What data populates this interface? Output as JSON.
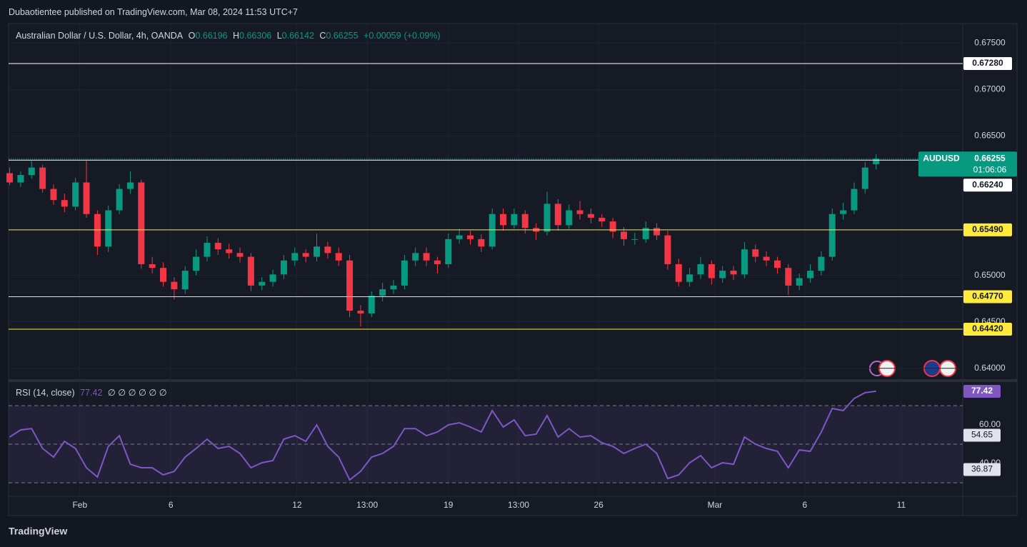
{
  "header": {
    "publisher": "Dubaotientee published on TradingView.com, Mar 08, 2024 11:53 UTC+7"
  },
  "footer": {
    "brand": "TradingView"
  },
  "chart_data": [
    {
      "type": "candlestick",
      "title": "Australian Dollar / U.S. Dollar, 4h, OANDA",
      "ohlc_labels": [
        "O",
        "H",
        "L",
        "C"
      ],
      "change": "+0.00059",
      "change_pct": "(+0.09%)",
      "symbol": "AUDUSD",
      "countdown": "01:06:06",
      "up_color": "#089981",
      "down_color": "#f23645",
      "grid": true,
      "ylim": [
        0.6389,
        0.6771
      ],
      "yticks": [
        {
          "value": 0.675,
          "label": "0.67500"
        },
        {
          "value": 0.67,
          "label": "0.67000"
        },
        {
          "value": 0.665,
          "label": "0.66500"
        },
        {
          "value": 0.65,
          "label": "0.65000"
        },
        {
          "value": 0.645,
          "label": "0.64500"
        },
        {
          "value": 0.64,
          "label": "0.64000"
        }
      ],
      "xlim": [
        -0.1,
        86.9
      ],
      "xticks": [
        {
          "value": 6.4,
          "label": "Feb"
        },
        {
          "value": 14.7,
          "label": "6"
        },
        {
          "value": 26.2,
          "label": "12"
        },
        {
          "value": 32.6,
          "label": "13:00"
        },
        {
          "value": 40,
          "label": "19"
        },
        {
          "value": 46.4,
          "label": "13:00"
        },
        {
          "value": 53.7,
          "label": "26"
        },
        {
          "value": 64.3,
          "label": "Mar"
        },
        {
          "value": 72.5,
          "label": "6"
        },
        {
          "value": 81.3,
          "label": "11"
        }
      ],
      "levels": [
        {
          "value": 0.6728,
          "label": "0.67280",
          "color": "#ffffff"
        },
        {
          "value": 0.6624,
          "label": "0.66240",
          "color": "#ffffff"
        },
        {
          "value": 0.6549,
          "label": "0.65490",
          "color": "#ffeb3b"
        },
        {
          "value": 0.6477,
          "label": "0.64770",
          "color": "#ffeb3b"
        },
        {
          "value": 0.6442,
          "label": "0.64420",
          "color": "#ffeb3b"
        }
      ],
      "candles": [
        [
          0.661,
          0.6616,
          0.6597,
          0.66
        ],
        [
          0.66,
          0.6612,
          0.6595,
          0.6608
        ],
        [
          0.6608,
          0.6623,
          0.6604,
          0.6616
        ],
        [
          0.6616,
          0.6619,
          0.6589,
          0.6593
        ],
        [
          0.6593,
          0.6598,
          0.6576,
          0.6581
        ],
        [
          0.6581,
          0.6588,
          0.6568,
          0.6574
        ],
        [
          0.6574,
          0.6605,
          0.657,
          0.66
        ],
        [
          0.66,
          0.6623,
          0.6562,
          0.6566
        ],
        [
          0.6566,
          0.657,
          0.6522,
          0.6531
        ],
        [
          0.6531,
          0.6575,
          0.6525,
          0.657
        ],
        [
          0.657,
          0.6598,
          0.6566,
          0.6593
        ],
        [
          0.6593,
          0.6612,
          0.6588,
          0.66
        ],
        [
          0.66,
          0.6603,
          0.6507,
          0.6512
        ],
        [
          0.6512,
          0.652,
          0.6502,
          0.6508
        ],
        [
          0.6508,
          0.6514,
          0.6488,
          0.6493
        ],
        [
          0.6493,
          0.6498,
          0.6474,
          0.6485
        ],
        [
          0.6485,
          0.651,
          0.648,
          0.6505
        ],
        [
          0.6505,
          0.6528,
          0.65,
          0.652
        ],
        [
          0.652,
          0.6542,
          0.6515,
          0.6535
        ],
        [
          0.6535,
          0.654,
          0.6522,
          0.6528
        ],
        [
          0.6528,
          0.6534,
          0.6518,
          0.6524
        ],
        [
          0.6524,
          0.653,
          0.6514,
          0.652
        ],
        [
          0.652,
          0.6524,
          0.6483,
          0.6489
        ],
        [
          0.6489,
          0.6498,
          0.6484,
          0.6493
        ],
        [
          0.6493,
          0.6506,
          0.6488,
          0.6501
        ],
        [
          0.6501,
          0.6522,
          0.6496,
          0.6516
        ],
        [
          0.6516,
          0.653,
          0.651,
          0.6524
        ],
        [
          0.6524,
          0.6528,
          0.6514,
          0.652
        ],
        [
          0.652,
          0.6545,
          0.6515,
          0.6531
        ],
        [
          0.6531,
          0.6536,
          0.6518,
          0.6524
        ],
        [
          0.6524,
          0.653,
          0.651,
          0.6516
        ],
        [
          0.6516,
          0.6522,
          0.6455,
          0.6462
        ],
        [
          0.6462,
          0.6468,
          0.6445,
          0.6459
        ],
        [
          0.6459,
          0.6483,
          0.6455,
          0.6478
        ],
        [
          0.6478,
          0.6492,
          0.6472,
          0.6485
        ],
        [
          0.6485,
          0.6495,
          0.648,
          0.6489
        ],
        [
          0.6489,
          0.6522,
          0.6485,
          0.6516
        ],
        [
          0.6516,
          0.653,
          0.651,
          0.6524
        ],
        [
          0.6524,
          0.653,
          0.651,
          0.6516
        ],
        [
          0.6516,
          0.652,
          0.6502,
          0.6512
        ],
        [
          0.6512,
          0.6545,
          0.6508,
          0.6539
        ],
        [
          0.6539,
          0.655,
          0.6534,
          0.6543
        ],
        [
          0.6543,
          0.6548,
          0.6533,
          0.6539
        ],
        [
          0.6539,
          0.6544,
          0.6525,
          0.6531
        ],
        [
          0.6531,
          0.6572,
          0.6528,
          0.6566
        ],
        [
          0.6566,
          0.6572,
          0.6548,
          0.6554
        ],
        [
          0.6554,
          0.6572,
          0.655,
          0.6566
        ],
        [
          0.6566,
          0.657,
          0.6545,
          0.6551
        ],
        [
          0.6551,
          0.6556,
          0.6538,
          0.6547
        ],
        [
          0.6547,
          0.659,
          0.6543,
          0.6577
        ],
        [
          0.6577,
          0.6582,
          0.6548,
          0.6554
        ],
        [
          0.6554,
          0.6576,
          0.655,
          0.657
        ],
        [
          0.657,
          0.658,
          0.656,
          0.6566
        ],
        [
          0.6566,
          0.6572,
          0.6556,
          0.6562
        ],
        [
          0.6562,
          0.6566,
          0.6552,
          0.6558
        ],
        [
          0.6558,
          0.6562,
          0.654,
          0.6547
        ],
        [
          0.6547,
          0.6552,
          0.6532,
          0.6539
        ],
        [
          0.6539,
          0.6546,
          0.6533,
          0.6539
        ],
        [
          0.6539,
          0.6558,
          0.6535,
          0.6551
        ],
        [
          0.6551,
          0.6556,
          0.6538,
          0.6543
        ],
        [
          0.6543,
          0.6548,
          0.6506,
          0.6512
        ],
        [
          0.6512,
          0.6518,
          0.6488,
          0.6493
        ],
        [
          0.6493,
          0.6508,
          0.6488,
          0.6501
        ],
        [
          0.6501,
          0.652,
          0.6496,
          0.6512
        ],
        [
          0.6512,
          0.6516,
          0.649,
          0.6497
        ],
        [
          0.6497,
          0.651,
          0.6492,
          0.6505
        ],
        [
          0.6505,
          0.651,
          0.6495,
          0.6501
        ],
        [
          0.6501,
          0.6536,
          0.6497,
          0.6528
        ],
        [
          0.6528,
          0.6533,
          0.6514,
          0.652
        ],
        [
          0.652,
          0.6526,
          0.651,
          0.6516
        ],
        [
          0.6516,
          0.652,
          0.6502,
          0.6508
        ],
        [
          0.6508,
          0.6512,
          0.6479,
          0.6489
        ],
        [
          0.6489,
          0.6502,
          0.6484,
          0.6497
        ],
        [
          0.6497,
          0.6512,
          0.6492,
          0.6505
        ],
        [
          0.6505,
          0.6526,
          0.65,
          0.652
        ],
        [
          0.652,
          0.6572,
          0.6516,
          0.6566
        ],
        [
          0.6566,
          0.6578,
          0.656,
          0.657
        ],
        [
          0.657,
          0.66,
          0.6566,
          0.6593
        ],
        [
          0.6593,
          0.6622,
          0.6588,
          0.6616
        ],
        [
          0.66196,
          0.66306,
          0.66142,
          0.66255
        ]
      ]
    },
    {
      "type": "line",
      "title": "RSI (14, close)",
      "placeholders": "∅ ∅ ∅ ∅ ∅ ∅",
      "color": "#7e57c2",
      "ylim": [
        23,
        81.1
      ],
      "yticks": [
        {
          "value": 60,
          "label": "60.00"
        },
        {
          "value": 40,
          "label": "40.00"
        }
      ],
      "bands": [
        70,
        50,
        30
      ],
      "markers": [
        54.65,
        36.87
      ],
      "series": [
        {
          "name": "RSI",
          "color": "#7e57c2",
          "values": [
            53.7,
            57.4,
            58.1,
            47.8,
            43.3,
            51.5,
            47.8,
            37.8,
            33.0,
            48.9,
            54.4,
            39.6,
            37.8,
            37.8,
            34.1,
            35.9,
            43.3,
            47.8,
            52.6,
            47.8,
            48.9,
            45.2,
            37.8,
            40.4,
            41.5,
            52.6,
            54.4,
            51.5,
            60.0,
            48.9,
            43.3,
            31.5,
            35.9,
            43.3,
            45.2,
            48.9,
            58.1,
            58.1,
            54.4,
            56.3,
            60.0,
            61.1,
            58.9,
            56.3,
            67.4,
            58.9,
            62.6,
            54.4,
            55.2,
            64.8,
            53.7,
            58.1,
            53.7,
            54.4,
            50.7,
            48.9,
            45.2,
            47.8,
            50.0,
            45.2,
            32.2,
            34.1,
            40.4,
            44.1,
            37.8,
            40.4,
            39.6,
            53.7,
            50.0,
            47.8,
            46.3,
            37.8,
            47.0,
            46.3,
            56.3,
            68.5,
            67.4,
            73.7,
            76.7,
            77.42
          ]
        }
      ]
    }
  ]
}
